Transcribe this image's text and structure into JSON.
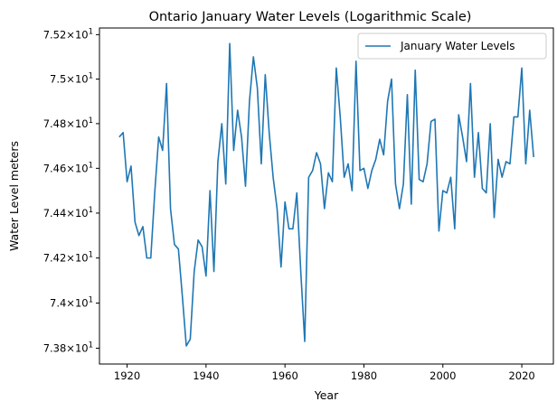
{
  "chart_data": {
    "type": "line",
    "title": "Ontario January Water Levels (Logarithmic Scale)",
    "xlabel": "Year",
    "ylabel": "Water Level meters",
    "y_scale": "log",
    "xlim": [
      1913,
      2028
    ],
    "ylim": [
      73.73,
      75.23
    ],
    "x_ticks": [
      1920,
      1940,
      1960,
      1980,
      2000,
      2020
    ],
    "x_tick_labels": [
      "1920",
      "1940",
      "1960",
      "1980",
      "2000",
      "2020"
    ],
    "y_ticks": [
      73.8,
      74.0,
      74.2,
      74.4,
      74.6,
      74.8,
      75.0,
      75.2
    ],
    "y_tick_labels": [
      {
        "mantissa": "7.38",
        "exp": "1"
      },
      {
        "mantissa": "7.4",
        "exp": "1"
      },
      {
        "mantissa": "7.42",
        "exp": "1"
      },
      {
        "mantissa": "7.44",
        "exp": "1"
      },
      {
        "mantissa": "7.46",
        "exp": "1"
      },
      {
        "mantissa": "7.48",
        "exp": "1"
      },
      {
        "mantissa": "7.5",
        "exp": "1"
      },
      {
        "mantissa": "7.52",
        "exp": "1"
      }
    ],
    "tick_label_multiplier": "×10",
    "grid": false,
    "legend_position": "top-right",
    "series": [
      {
        "name": "January Water Levels",
        "color": "#1f77b4",
        "x": [
          1918,
          1919,
          1920,
          1921,
          1922,
          1923,
          1924,
          1925,
          1926,
          1927,
          1928,
          1929,
          1930,
          1931,
          1932,
          1933,
          1934,
          1935,
          1936,
          1937,
          1938,
          1939,
          1940,
          1941,
          1942,
          1943,
          1944,
          1945,
          1946,
          1947,
          1948,
          1949,
          1950,
          1951,
          1952,
          1953,
          1954,
          1955,
          1956,
          1957,
          1958,
          1959,
          1960,
          1961,
          1962,
          1963,
          1964,
          1965,
          1966,
          1967,
          1968,
          1969,
          1970,
          1971,
          1972,
          1973,
          1974,
          1975,
          1976,
          1977,
          1978,
          1979,
          1980,
          1981,
          1982,
          1983,
          1984,
          1985,
          1986,
          1987,
          1988,
          1989,
          1990,
          1991,
          1992,
          1993,
          1994,
          1995,
          1996,
          1997,
          1998,
          1999,
          2000,
          2001,
          2002,
          2003,
          2004,
          2005,
          2006,
          2007,
          2008,
          2009,
          2010,
          2011,
          2012,
          2013,
          2014,
          2015,
          2016,
          2017,
          2018,
          2019,
          2020,
          2021,
          2022,
          2023
        ],
        "values": [
          74.74,
          74.76,
          74.54,
          74.61,
          74.36,
          74.3,
          74.34,
          74.2,
          74.2,
          74.49,
          74.74,
          74.68,
          74.98,
          74.42,
          74.26,
          74.24,
          74.03,
          73.81,
          73.84,
          74.14,
          74.28,
          74.25,
          74.12,
          74.5,
          74.14,
          74.63,
          74.8,
          74.53,
          75.16,
          74.68,
          74.86,
          74.74,
          74.52,
          74.9,
          75.1,
          74.96,
          74.62,
          75.02,
          74.76,
          74.56,
          74.42,
          74.16,
          74.45,
          74.33,
          74.33,
          74.49,
          74.14,
          73.83,
          74.56,
          74.59,
          74.67,
          74.62,
          74.42,
          74.58,
          74.54,
          75.05,
          74.83,
          74.56,
          74.62,
          74.5,
          75.08,
          74.59,
          74.6,
          74.51,
          74.59,
          74.64,
          74.73,
          74.66,
          74.9,
          75.0,
          74.53,
          74.42,
          74.53,
          74.93,
          74.44,
          75.04,
          74.55,
          74.54,
          74.62,
          74.81,
          74.82,
          74.32,
          74.5,
          74.49,
          74.56,
          74.33,
          74.84,
          74.74,
          74.63,
          74.98,
          74.56,
          74.76,
          74.51,
          74.49,
          74.8,
          74.38,
          74.64,
          74.56,
          74.63,
          74.62,
          74.83,
          74.83,
          75.05,
          74.62,
          74.86,
          74.65
        ]
      }
    ]
  }
}
